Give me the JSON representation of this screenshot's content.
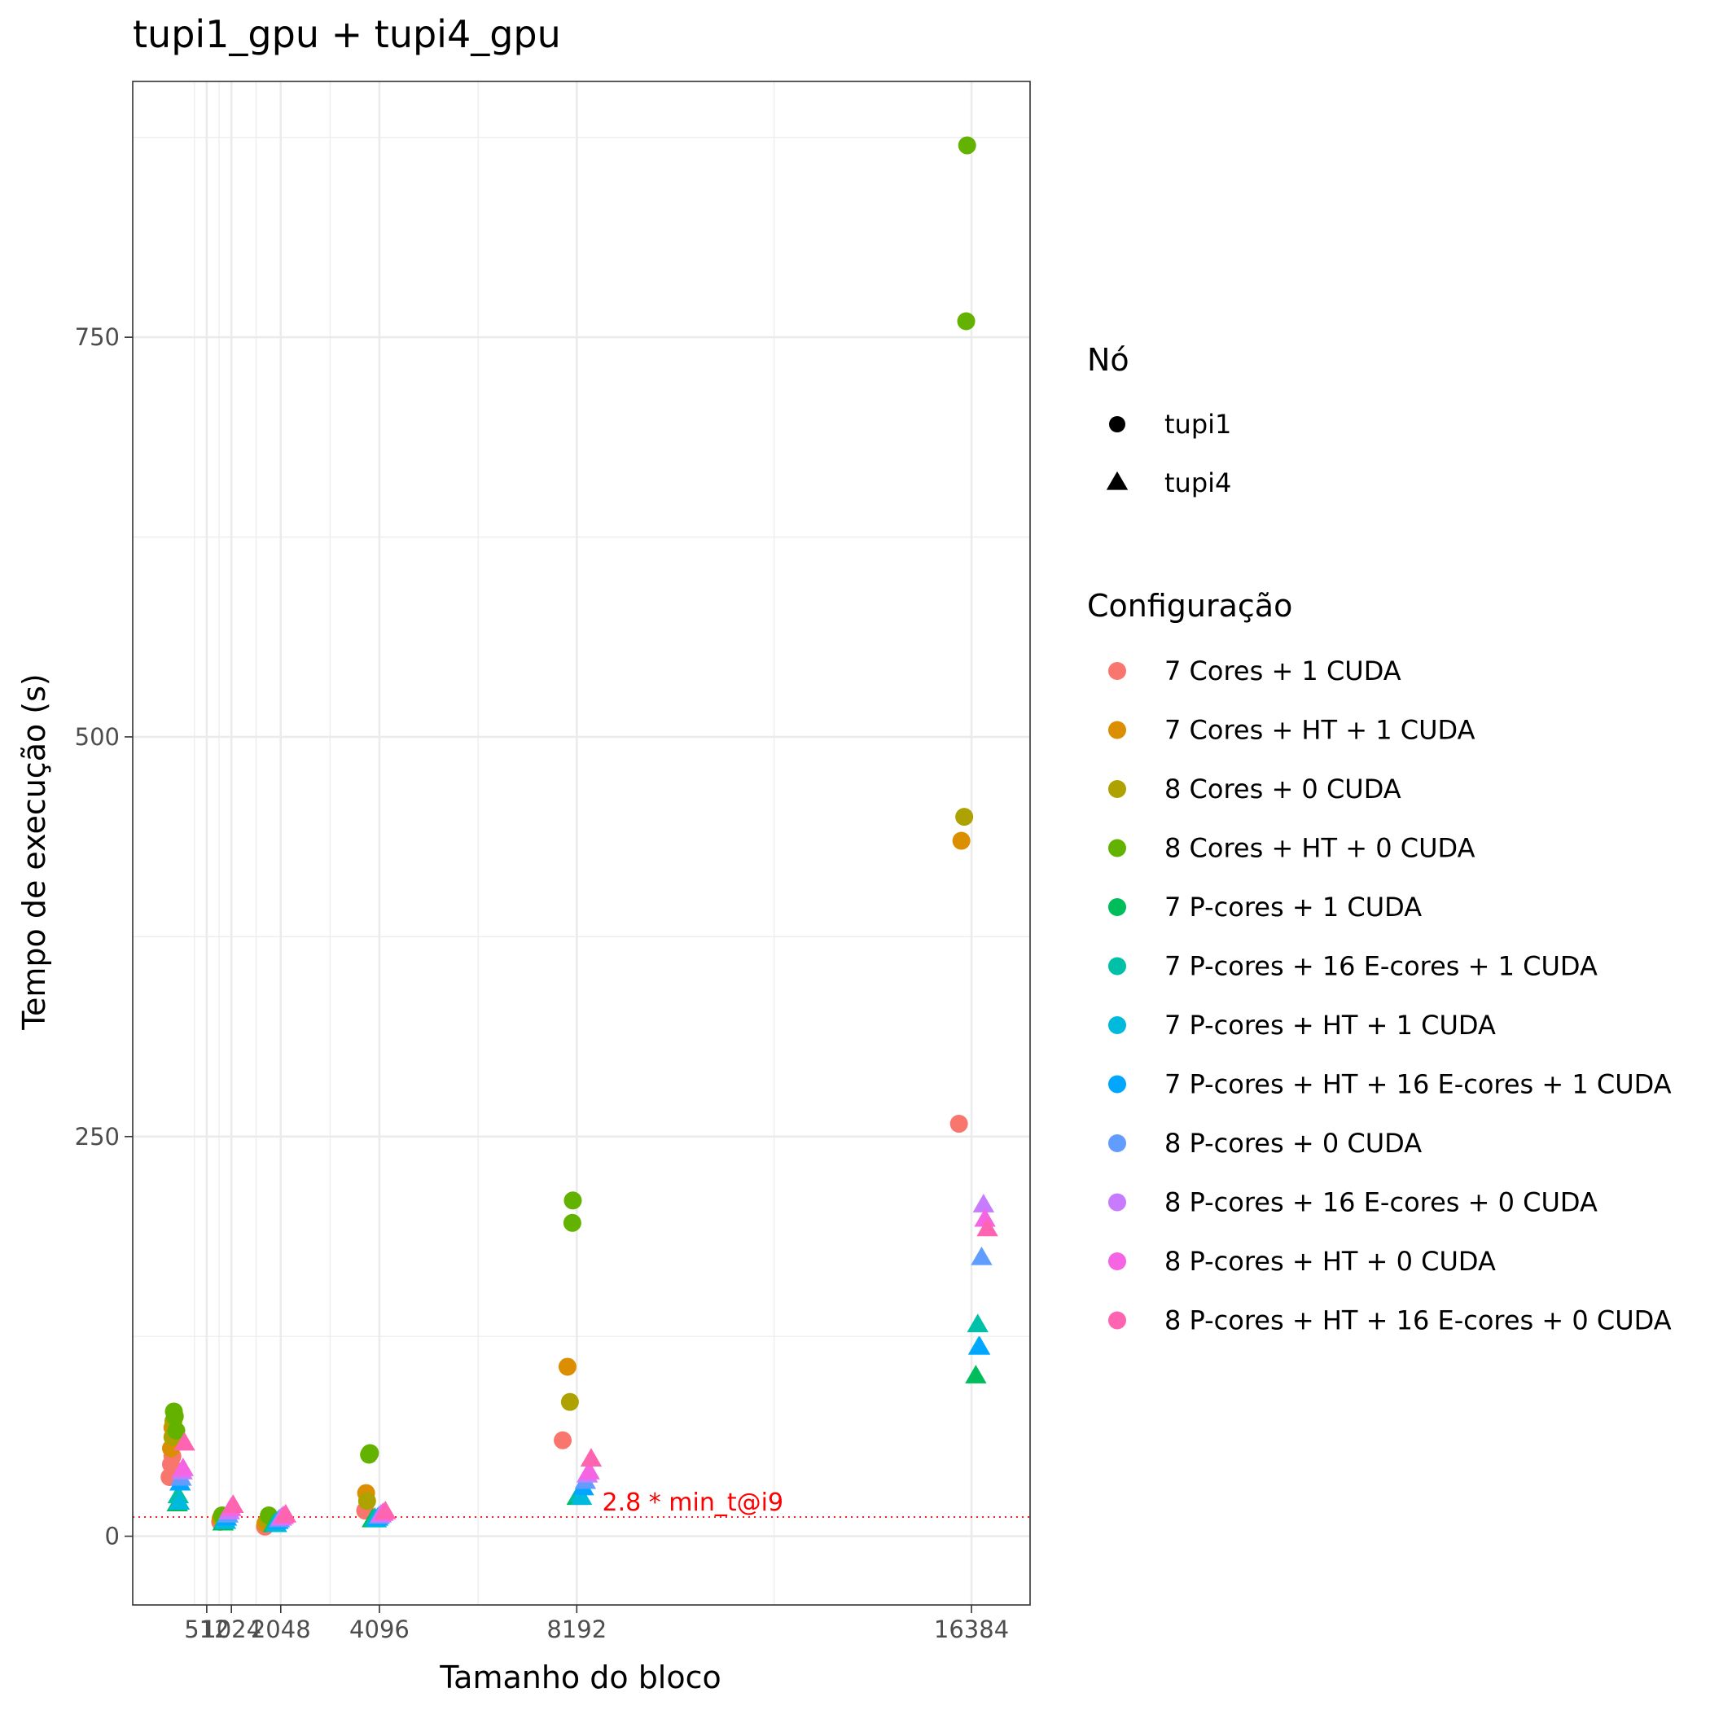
{
  "chart_data": {
    "type": "scatter",
    "title": "tupi1_gpu + tupi4_gpu",
    "xlabel": "Tamanho do bloco",
    "ylabel": "Tempo de execução (s)",
    "xlim": [
      -1024,
      17600
    ],
    "ylim": [
      -43,
      910
    ],
    "x_ticks": [
      512,
      1024,
      2048,
      4096,
      8192,
      16384
    ],
    "x_tick_labels": [
      "512",
      "1024",
      "2048",
      "4096",
      "8192",
      "16384"
    ],
    "y_ticks": [
      0,
      250,
      500,
      750
    ],
    "y_tick_labels": [
      "0",
      "250",
      "500",
      "750"
    ],
    "grid": true,
    "legend_position": "right",
    "annotation": {
      "text": "2.8 * min_t@i9",
      "y": 12,
      "x": 10600,
      "color": "#ff0000"
    },
    "shape_legend": {
      "title": "Nó",
      "entries": [
        {
          "label": "tupi1",
          "shape": "circle"
        },
        {
          "label": "tupi4",
          "shape": "triangle"
        }
      ]
    },
    "color_legend": {
      "title": "Configuração",
      "entries": [
        {
          "label": "7 Cores + 1 CUDA",
          "color": "#F8766D"
        },
        {
          "label": "7 Cores + HT + 1 CUDA",
          "color": "#DB8E00"
        },
        {
          "label": "8 Cores + 0 CUDA",
          "color": "#AEA200"
        },
        {
          "label": "8 Cores + HT + 0 CUDA",
          "color": "#64B200"
        },
        {
          "label": "7 P-cores + 1 CUDA",
          "color": "#00BD5C"
        },
        {
          "label": "7 P-cores + 16 E-cores + 1 CUDA",
          "color": "#00C1A7"
        },
        {
          "label": "7 P-cores + HT + 1 CUDA",
          "color": "#00BADE"
        },
        {
          "label": "7 P-cores + HT + 16 E-cores + 1 CUDA",
          "color": "#00A6FF"
        },
        {
          "label": "8 P-cores + 0 CUDA",
          "color": "#619CFF"
        },
        {
          "label": "8 P-cores + 16 E-cores + 0 CUDA",
          "color": "#C77CFF"
        },
        {
          "label": "8 P-cores + HT + 0 CUDA",
          "color": "#F564E3"
        },
        {
          "label": "8 P-cores + HT + 16 E-cores + 0 CUDA",
          "color": "#FF64B0"
        }
      ]
    },
    "series": [
      {
        "name": "7 Cores + 1 CUDA",
        "node": "tupi1",
        "points": [
          [
            -260,
            37
          ],
          [
            -230,
            45
          ],
          [
            -200,
            50
          ],
          [
            790,
            9
          ],
          [
            1720,
            6
          ],
          [
            3800,
            16
          ],
          [
            7900,
            60
          ],
          [
            16124,
            258
          ]
        ]
      },
      {
        "name": "7 Cores + HT + 1 CUDA",
        "node": "tupi1",
        "points": [
          [
            -230,
            55
          ],
          [
            -200,
            68
          ],
          [
            800,
            11
          ],
          [
            1730,
            8
          ],
          [
            3820,
            27
          ],
          [
            8000,
            106
          ],
          [
            16174,
            435
          ]
        ]
      },
      {
        "name": "8 Cores + 0 CUDA",
        "node": "tupi1",
        "points": [
          [
            -200,
            62
          ],
          [
            -180,
            72
          ],
          [
            820,
            12
          ],
          [
            1780,
            10
          ],
          [
            3840,
            22
          ],
          [
            8050,
            84
          ],
          [
            16234,
            450
          ]
        ]
      },
      {
        "name": "8 Cores + HT + 0 CUDA",
        "node": "tupi1",
        "points": [
          [
            -170,
            78
          ],
          [
            -150,
            75
          ],
          [
            -120,
            66
          ],
          [
            830,
            13
          ],
          [
            1800,
            13
          ],
          [
            3880,
            51
          ],
          [
            3900,
            52
          ],
          [
            8100,
            196
          ],
          [
            8110,
            210
          ],
          [
            16274,
            760
          ],
          [
            16294,
            870
          ]
        ]
      },
      {
        "name": "7 P-cores + 1 CUDA",
        "node": "tupi4",
        "points": [
          [
            -100,
            20
          ],
          [
            850,
            8
          ],
          [
            1900,
            7
          ],
          [
            3950,
            10
          ],
          [
            8200,
            24
          ],
          [
            16474,
            100
          ]
        ]
      },
      {
        "name": "7 P-cores + 16 E-cores + 1 CUDA",
        "node": "tupi4",
        "points": [
          [
            -80,
            25
          ],
          [
            880,
            10
          ],
          [
            1930,
            8
          ],
          [
            4000,
            11
          ],
          [
            8250,
            26
          ],
          [
            16514,
            132
          ]
        ]
      },
      {
        "name": "7 P-cores + HT + 1 CUDA",
        "node": "tupi4",
        "points": [
          [
            -60,
            21
          ],
          [
            900,
            9
          ],
          [
            1960,
            7
          ],
          [
            4030,
            10
          ],
          [
            8290,
            24
          ],
          [
            16534,
            118
          ]
        ]
      },
      {
        "name": "7 P-cores + HT + 16 E-cores + 1 CUDA",
        "node": "tupi4",
        "points": [
          [
            -40,
            33
          ],
          [
            920,
            11
          ],
          [
            1990,
            9
          ],
          [
            4060,
            11
          ],
          [
            8330,
            30
          ],
          [
            16554,
            118
          ]
        ]
      },
      {
        "name": "8 P-cores + 0 CUDA",
        "node": "tupi4",
        "points": [
          [
            -20,
            36
          ],
          [
            950,
            13
          ],
          [
            2020,
            10
          ],
          [
            4090,
            12
          ],
          [
            8370,
            34
          ],
          [
            16594,
            174
          ]
        ]
      },
      {
        "name": "8 P-cores + 16 E-cores + 0 CUDA",
        "node": "tupi4",
        "points": [
          [
            0,
            40
          ],
          [
            980,
            15
          ],
          [
            2060,
            11
          ],
          [
            4130,
            13
          ],
          [
            8410,
            38
          ],
          [
            16634,
            207
          ]
        ]
      },
      {
        "name": "8 P-cores + HT + 0 CUDA",
        "node": "tupi4",
        "points": [
          [
            20,
            42
          ],
          [
            1010,
            17
          ],
          [
            2100,
            12
          ],
          [
            4170,
            14
          ],
          [
            8450,
            40
          ],
          [
            16664,
            198
          ]
        ]
      },
      {
        "name": "8 P-cores + HT + 16 E-cores + 0 CUDA",
        "node": "tupi4",
        "points": [
          [
            50,
            58
          ],
          [
            1060,
            19
          ],
          [
            2150,
            13
          ],
          [
            4220,
            15
          ],
          [
            8490,
            48
          ],
          [
            16714,
            192
          ]
        ]
      }
    ]
  }
}
